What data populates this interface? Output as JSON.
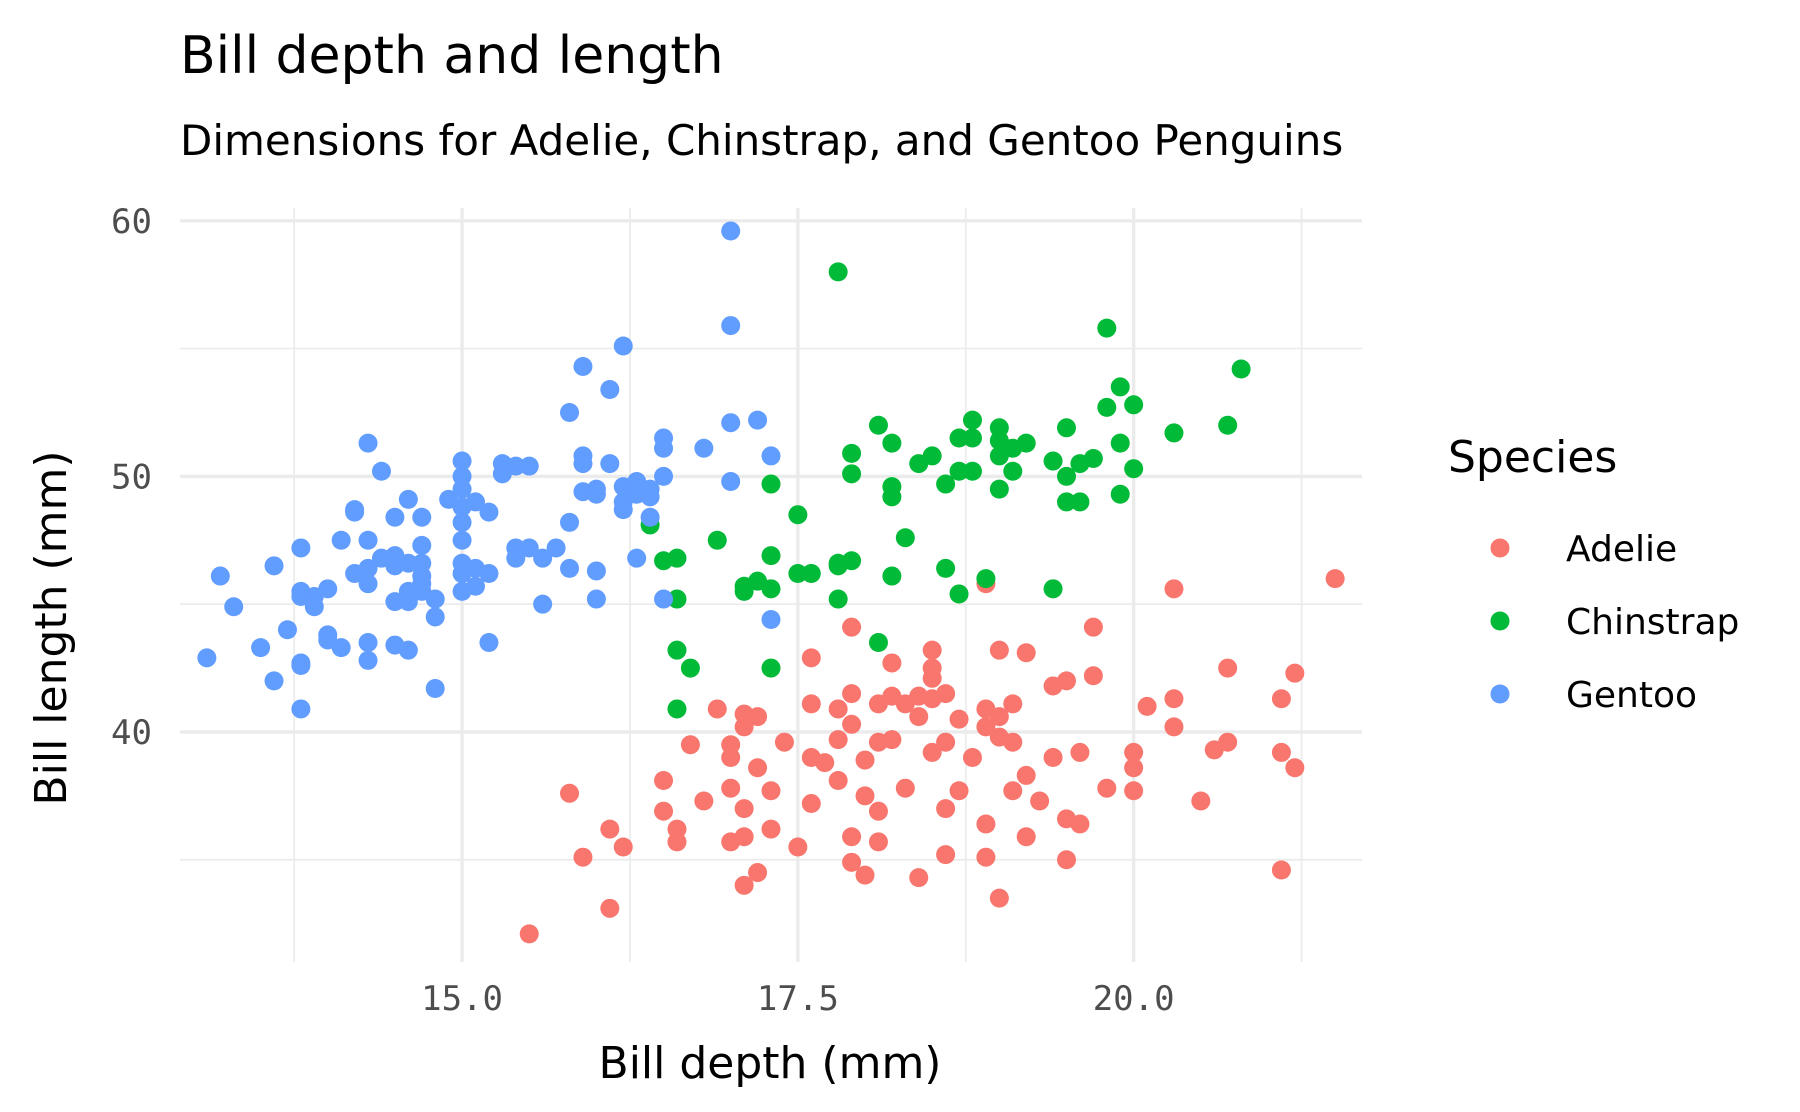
{
  "chart_data": {
    "type": "scatter",
    "title": "Bill depth and length",
    "subtitle": "Dimensions for Adelie, Chinstrap, and Gentoo Penguins",
    "xlabel": "Bill depth (mm)",
    "ylabel": "Bill length (mm)",
    "xlim": [
      12.9,
      21.7
    ],
    "ylim": [
      31.0,
      60.5
    ],
    "x_ticks": [
      15.0,
      17.5,
      20.0
    ],
    "x_tick_labels": [
      "15.0",
      "17.5",
      "20.0"
    ],
    "y_ticks": [
      40,
      50,
      60
    ],
    "y_tick_labels": [
      "40",
      "50",
      "60"
    ],
    "grid": true,
    "legend": {
      "title": "Species",
      "position": "right"
    },
    "series": [
      {
        "name": "Adelie",
        "color": "#F8766D",
        "points": [
          [
            15.5,
            32.1
          ],
          [
            16.1,
            33.1
          ],
          [
            17.1,
            34.0
          ],
          [
            17.2,
            34.5
          ],
          [
            18.0,
            34.4
          ],
          [
            18.4,
            34.3
          ],
          [
            19.0,
            33.5
          ],
          [
            21.1,
            34.6
          ],
          [
            15.9,
            35.1
          ],
          [
            16.2,
            35.5
          ],
          [
            16.1,
            36.2
          ],
          [
            16.6,
            35.7
          ],
          [
            16.6,
            36.2
          ],
          [
            17.0,
            35.7
          ],
          [
            17.1,
            35.9
          ],
          [
            17.3,
            36.2
          ],
          [
            17.5,
            35.5
          ],
          [
            17.9,
            35.9
          ],
          [
            17.9,
            34.9
          ],
          [
            18.1,
            35.7
          ],
          [
            18.6,
            35.2
          ],
          [
            18.9,
            35.1
          ],
          [
            19.2,
            35.9
          ],
          [
            19.5,
            35.0
          ],
          [
            19.6,
            36.4
          ],
          [
            15.8,
            37.6
          ],
          [
            16.5,
            38.1
          ],
          [
            16.5,
            36.9
          ],
          [
            16.8,
            37.3
          ],
          [
            17.0,
            37.8
          ],
          [
            17.1,
            37.0
          ],
          [
            17.2,
            38.6
          ],
          [
            17.3,
            37.7
          ],
          [
            17.6,
            37.2
          ],
          [
            17.8,
            38.1
          ],
          [
            18.0,
            37.5
          ],
          [
            18.1,
            36.9
          ],
          [
            18.3,
            37.8
          ],
          [
            18.6,
            37.0
          ],
          [
            18.7,
            37.7
          ],
          [
            18.9,
            36.4
          ],
          [
            19.1,
            37.7
          ],
          [
            19.3,
            37.3
          ],
          [
            19.5,
            36.6
          ],
          [
            19.8,
            37.8
          ],
          [
            20.0,
            37.7
          ],
          [
            20.5,
            37.3
          ],
          [
            16.7,
            39.5
          ],
          [
            17.0,
            39.5
          ],
          [
            17.1,
            40.2
          ],
          [
            17.2,
            40.6
          ],
          [
            17.4,
            39.6
          ],
          [
            17.6,
            39.0
          ],
          [
            17.7,
            38.8
          ],
          [
            17.8,
            39.7
          ],
          [
            17.9,
            40.3
          ],
          [
            18.0,
            38.9
          ],
          [
            18.1,
            39.6
          ],
          [
            18.2,
            39.7
          ],
          [
            18.4,
            40.6
          ],
          [
            18.5,
            39.2
          ],
          [
            18.6,
            39.6
          ],
          [
            18.8,
            39.0
          ],
          [
            18.9,
            40.2
          ],
          [
            19.0,
            39.8
          ],
          [
            19.1,
            39.6
          ],
          [
            19.2,
            38.3
          ],
          [
            19.4,
            39.0
          ],
          [
            19.6,
            39.2
          ],
          [
            20.0,
            38.6
          ],
          [
            20.0,
            39.2
          ],
          [
            20.3,
            40.2
          ],
          [
            20.6,
            39.3
          ],
          [
            20.7,
            39.6
          ],
          [
            21.1,
            39.2
          ],
          [
            21.2,
            38.6
          ],
          [
            16.9,
            40.9
          ],
          [
            17.1,
            40.7
          ],
          [
            17.6,
            41.1
          ],
          [
            17.8,
            40.9
          ],
          [
            17.9,
            41.5
          ],
          [
            18.1,
            41.1
          ],
          [
            18.2,
            41.4
          ],
          [
            18.3,
            41.1
          ],
          [
            18.4,
            41.4
          ],
          [
            18.5,
            41.3
          ],
          [
            18.6,
            41.5
          ],
          [
            18.9,
            40.9
          ],
          [
            19.1,
            41.1
          ],
          [
            19.0,
            40.6
          ],
          [
            19.4,
            41.8
          ],
          [
            19.5,
            42.0
          ],
          [
            19.7,
            42.2
          ],
          [
            20.1,
            41.0
          ],
          [
            20.3,
            41.3
          ],
          [
            20.7,
            42.5
          ],
          [
            21.1,
            41.3
          ],
          [
            21.2,
            42.3
          ],
          [
            17.6,
            42.9
          ],
          [
            18.2,
            42.7
          ],
          [
            18.5,
            43.2
          ],
          [
            18.5,
            42.5
          ],
          [
            19.0,
            43.2
          ],
          [
            19.2,
            43.1
          ],
          [
            17.9,
            44.1
          ],
          [
            19.7,
            44.1
          ],
          [
            18.9,
            45.8
          ],
          [
            20.3,
            45.6
          ],
          [
            21.5,
            46.0
          ],
          [
            18.5,
            42.1
          ],
          [
            17.0,
            39.0
          ],
          [
            18.7,
            40.5
          ]
        ]
      },
      {
        "name": "Chinstrap",
        "color": "#00BA38",
        "points": [
          [
            16.4,
            48.1
          ],
          [
            16.5,
            46.7
          ],
          [
            16.6,
            46.8
          ],
          [
            16.6,
            45.2
          ],
          [
            16.6,
            43.2
          ],
          [
            16.7,
            42.5
          ],
          [
            16.6,
            40.9
          ],
          [
            16.9,
            47.5
          ],
          [
            17.1,
            45.5
          ],
          [
            17.1,
            45.7
          ],
          [
            17.2,
            45.9
          ],
          [
            17.3,
            45.6
          ],
          [
            17.3,
            46.9
          ],
          [
            17.3,
            42.5
          ],
          [
            17.3,
            49.7
          ],
          [
            17.5,
            48.5
          ],
          [
            17.5,
            46.2
          ],
          [
            17.8,
            46.6
          ],
          [
            17.8,
            45.2
          ],
          [
            17.8,
            46.5
          ],
          [
            17.8,
            58.0
          ],
          [
            17.9,
            46.7
          ],
          [
            17.9,
            50.9
          ],
          [
            17.9,
            50.1
          ],
          [
            18.1,
            43.5
          ],
          [
            18.1,
            52.0
          ],
          [
            18.2,
            51.3
          ],
          [
            18.2,
            49.6
          ],
          [
            18.2,
            49.2
          ],
          [
            18.2,
            46.1
          ],
          [
            18.3,
            47.6
          ],
          [
            18.4,
            50.5
          ],
          [
            18.5,
            50.8
          ],
          [
            18.6,
            46.4
          ],
          [
            18.6,
            49.7
          ],
          [
            18.7,
            50.2
          ],
          [
            18.7,
            51.5
          ],
          [
            18.7,
            45.4
          ],
          [
            18.8,
            52.2
          ],
          [
            18.8,
            50.2
          ],
          [
            18.9,
            46.0
          ],
          [
            19.0,
            49.5
          ],
          [
            19.0,
            51.9
          ],
          [
            19.0,
            50.8
          ],
          [
            19.0,
            51.4
          ],
          [
            19.1,
            51.1
          ],
          [
            19.2,
            51.3
          ],
          [
            19.4,
            45.6
          ],
          [
            19.4,
            50.6
          ],
          [
            19.5,
            50.0
          ],
          [
            19.5,
            49.0
          ],
          [
            19.5,
            51.9
          ],
          [
            19.6,
            49.0
          ],
          [
            19.6,
            50.5
          ],
          [
            19.7,
            50.7
          ],
          [
            19.8,
            52.7
          ],
          [
            19.8,
            55.8
          ],
          [
            19.9,
            49.3
          ],
          [
            19.9,
            51.3
          ],
          [
            19.9,
            53.5
          ],
          [
            20.0,
            52.8
          ],
          [
            20.0,
            50.3
          ],
          [
            20.3,
            51.7
          ],
          [
            20.7,
            52.0
          ],
          [
            20.8,
            54.2
          ],
          [
            18.8,
            51.5
          ],
          [
            17.6,
            46.2
          ],
          [
            19.1,
            50.2
          ]
        ]
      },
      {
        "name": "Gentoo",
        "color": "#619CFF",
        "points": [
          [
            13.1,
            42.9
          ],
          [
            13.2,
            46.1
          ],
          [
            13.3,
            44.9
          ],
          [
            13.5,
            43.3
          ],
          [
            13.6,
            46.5
          ],
          [
            13.6,
            42.0
          ],
          [
            13.7,
            44.0
          ],
          [
            13.8,
            45.3
          ],
          [
            13.8,
            45.5
          ],
          [
            13.8,
            47.2
          ],
          [
            13.8,
            42.7
          ],
          [
            13.8,
            42.6
          ],
          [
            13.8,
            40.9
          ],
          [
            13.9,
            44.9
          ],
          [
            13.9,
            45.3
          ],
          [
            14.0,
            45.6
          ],
          [
            14.0,
            43.8
          ],
          [
            14.0,
            43.6
          ],
          [
            14.1,
            43.3
          ],
          [
            14.1,
            47.5
          ],
          [
            14.2,
            46.2
          ],
          [
            14.2,
            48.6
          ],
          [
            14.2,
            48.7
          ],
          [
            14.3,
            46.4
          ],
          [
            14.3,
            47.5
          ],
          [
            14.3,
            45.8
          ],
          [
            14.3,
            43.5
          ],
          [
            14.3,
            42.8
          ],
          [
            14.3,
            51.3
          ],
          [
            14.4,
            46.8
          ],
          [
            14.4,
            50.2
          ],
          [
            14.5,
            48.4
          ],
          [
            14.5,
            46.5
          ],
          [
            14.5,
            45.1
          ],
          [
            14.5,
            43.4
          ],
          [
            14.5,
            46.9
          ],
          [
            14.6,
            49.1
          ],
          [
            14.6,
            45.1
          ],
          [
            14.6,
            46.6
          ],
          [
            14.6,
            43.2
          ],
          [
            14.6,
            45.5
          ],
          [
            14.7,
            46.6
          ],
          [
            14.7,
            47.3
          ],
          [
            14.7,
            48.4
          ],
          [
            14.7,
            45.8
          ],
          [
            14.7,
            45.5
          ],
          [
            14.7,
            46.1
          ],
          [
            14.8,
            41.7
          ],
          [
            14.8,
            44.5
          ],
          [
            14.8,
            45.2
          ],
          [
            15.0,
            46.2
          ],
          [
            14.9,
            49.1
          ],
          [
            15.0,
            46.6
          ],
          [
            15.0,
            48.2
          ],
          [
            15.0,
            49.5
          ],
          [
            15.0,
            50.0
          ],
          [
            15.0,
            45.5
          ],
          [
            15.0,
            47.5
          ],
          [
            15.0,
            50.6
          ],
          [
            15.0,
            48.8
          ],
          [
            15.1,
            45.7
          ],
          [
            15.1,
            46.4
          ],
          [
            15.1,
            49.0
          ],
          [
            15.2,
            46.2
          ],
          [
            15.2,
            48.6
          ],
          [
            15.2,
            43.5
          ],
          [
            15.3,
            50.5
          ],
          [
            15.3,
            50.1
          ],
          [
            15.4,
            50.4
          ],
          [
            15.4,
            47.2
          ],
          [
            15.4,
            46.8
          ],
          [
            15.5,
            50.4
          ],
          [
            15.5,
            47.2
          ],
          [
            15.6,
            45.0
          ],
          [
            15.6,
            46.8
          ],
          [
            15.7,
            47.2
          ],
          [
            15.8,
            52.5
          ],
          [
            15.8,
            48.2
          ],
          [
            15.8,
            46.4
          ],
          [
            15.9,
            49.4
          ],
          [
            15.9,
            50.8
          ],
          [
            15.9,
            50.5
          ],
          [
            15.9,
            54.3
          ],
          [
            16.0,
            45.2
          ],
          [
            16.0,
            49.5
          ],
          [
            16.0,
            46.3
          ],
          [
            16.0,
            49.3
          ],
          [
            16.1,
            50.5
          ],
          [
            16.1,
            53.4
          ],
          [
            16.2,
            55.1
          ],
          [
            16.2,
            48.7
          ],
          [
            16.2,
            49.6
          ],
          [
            16.2,
            49.0
          ],
          [
            16.3,
            49.8
          ],
          [
            16.3,
            49.3
          ],
          [
            16.3,
            49.5
          ],
          [
            16.3,
            46.8
          ],
          [
            16.4,
            49.2
          ],
          [
            16.4,
            48.4
          ],
          [
            16.5,
            50.0
          ],
          [
            16.5,
            51.1
          ],
          [
            16.5,
            51.5
          ],
          [
            16.5,
            45.2
          ],
          [
            16.8,
            51.1
          ],
          [
            17.0,
            49.8
          ],
          [
            17.0,
            52.1
          ],
          [
            17.0,
            55.9
          ],
          [
            17.0,
            59.6
          ],
          [
            17.2,
            52.2
          ],
          [
            17.3,
            50.8
          ],
          [
            17.3,
            44.4
          ],
          [
            16.4,
            49.5
          ]
        ]
      }
    ]
  }
}
